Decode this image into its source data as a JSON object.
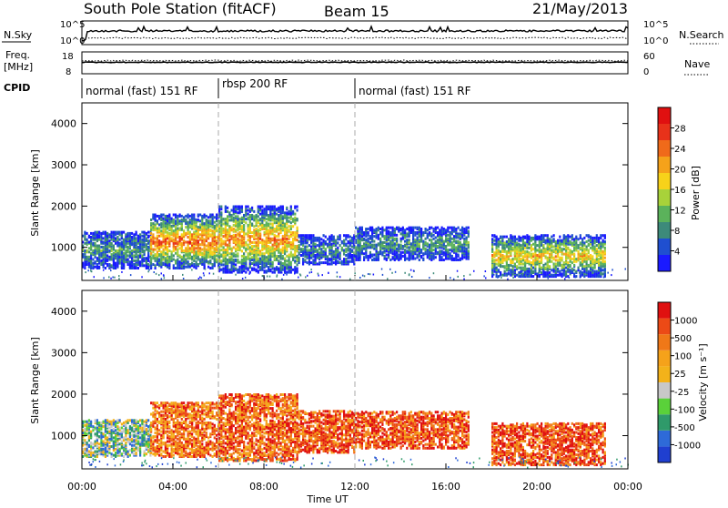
{
  "header": {
    "station": "South Pole Station (fitACF)",
    "beam": "Beam 15",
    "date": "21/May/2013"
  },
  "sky_panel": {
    "left_label": "N.Sky",
    "right_label": "N.Search",
    "left_ticks": [
      "10^5",
      "10^0"
    ],
    "right_ticks": [
      "10^5",
      "10^0"
    ]
  },
  "freq_panel": {
    "left_label_1": "Freq.",
    "left_label_2": "[MHz]",
    "right_label": "Nave",
    "left_ticks": [
      "18",
      "8"
    ],
    "right_ticks": [
      "60",
      "0"
    ]
  },
  "cpid": {
    "label": "CPID",
    "segments": [
      {
        "name": "normal (fast) 151 RF",
        "start_hour": 0,
        "end_hour": 6
      },
      {
        "name": "rbsp 200 RF",
        "start_hour": 6,
        "end_hour": 12
      },
      {
        "name": "normal (fast) 151 RF",
        "start_hour": 12,
        "end_hour": 24
      }
    ]
  },
  "chart_data": [
    {
      "type": "heatmap",
      "title": "Power",
      "ylabel": "Slant Range [km]",
      "yticks": [
        "1000",
        "2000",
        "3000",
        "4000"
      ],
      "ylim": [
        200,
        4500
      ],
      "xlim_hours": [
        0,
        24
      ],
      "colorbar": {
        "label": "Power [dB]",
        "ticks": [
          "4",
          "8",
          "12",
          "16",
          "20",
          "24",
          "28"
        ],
        "colors": [
          "#1a1aff",
          "#1f4fd0",
          "#3d8a7a",
          "#5bb25b",
          "#a8d23a",
          "#f7d21a",
          "#f5a21a",
          "#f06a1a",
          "#e8321a",
          "#e01010"
        ]
      },
      "echo_regions": [
        {
          "t0": 0.0,
          "t1": 3.0,
          "r0": 500,
          "r1": 1400,
          "level": 0.25
        },
        {
          "t0": 3.0,
          "t1": 6.0,
          "r0": 500,
          "r1": 1800,
          "level": 0.75
        },
        {
          "t0": 6.0,
          "t1": 9.5,
          "r0": 400,
          "r1": 2000,
          "level": 0.65
        },
        {
          "t0": 9.5,
          "t1": 12.0,
          "r0": 600,
          "r1": 1300,
          "level": 0.2
        },
        {
          "t0": 12.0,
          "t1": 17.0,
          "r0": 700,
          "r1": 1500,
          "level": 0.25
        },
        {
          "t0": 18.0,
          "t1": 23.0,
          "r0": 300,
          "r1": 1300,
          "level": 0.55
        }
      ]
    },
    {
      "type": "heatmap",
      "title": "Velocity",
      "ylabel": "Slant Range [km]",
      "yticks": [
        "1000",
        "2000",
        "3000",
        "4000"
      ],
      "ylim": [
        200,
        4500
      ],
      "xlim_hours": [
        0,
        24
      ],
      "colorbar": {
        "label": "Velocity [m s⁻¹]",
        "ticks": [
          "1000",
          "500",
          "100",
          "25",
          "-25",
          "-100",
          "-500",
          "-1000"
        ],
        "colors": [
          "#1f3fd0",
          "#2e6ad8",
          "#2f9a6a",
          "#5ad13a",
          "#c8c8c8",
          "#f3b21a",
          "#f5a21a",
          "#f07818",
          "#ec4a16",
          "#e01010"
        ]
      },
      "echo_regions": [
        {
          "t0": 0.0,
          "t1": 3.0,
          "r0": 500,
          "r1": 1400,
          "level": 0.3
        },
        {
          "t0": 3.0,
          "t1": 6.0,
          "r0": 500,
          "r1": 1800,
          "level": 0.7
        },
        {
          "t0": 6.0,
          "t1": 9.5,
          "r0": 400,
          "r1": 2000,
          "level": 0.75
        },
        {
          "t0": 9.5,
          "t1": 12.0,
          "r0": 600,
          "r1": 1600,
          "level": 0.8
        },
        {
          "t0": 12.0,
          "t1": 17.0,
          "r0": 700,
          "r1": 1600,
          "level": 0.8
        },
        {
          "t0": 18.0,
          "t1": 23.0,
          "r0": 300,
          "r1": 1300,
          "level": 0.8
        }
      ]
    }
  ],
  "xaxis": {
    "label": "Time UT",
    "ticks": [
      "00:00",
      "04:00",
      "08:00",
      "12:00",
      "16:00",
      "20:00",
      "00:00"
    ]
  }
}
